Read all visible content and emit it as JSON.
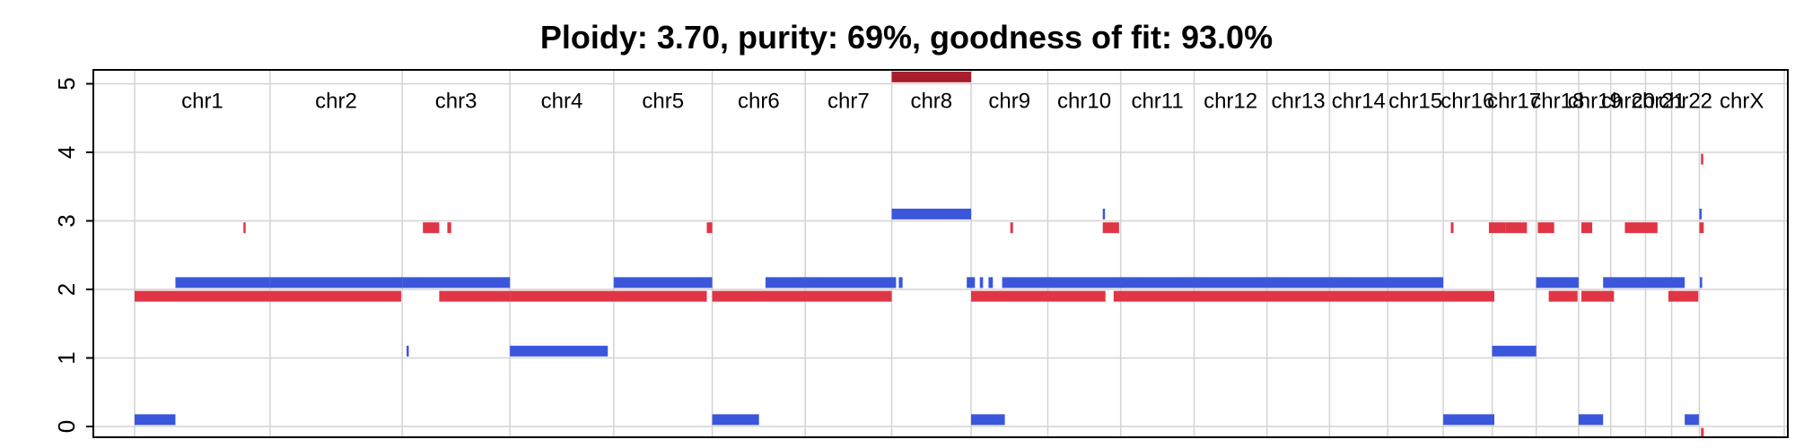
{
  "chart_data": {
    "type": "segment-plot",
    "title": "Ploidy: 3.70, purity: 69%, goodness of fit: 93.0%",
    "xlabel": "",
    "ylabel": "",
    "ylim": [
      0,
      5.1
    ],
    "yticks": [
      "0",
      "1",
      "2",
      "3",
      "4",
      "5"
    ],
    "grid": true,
    "x_unit": "Mb (concatenated genome)",
    "chromosomes": [
      {
        "name": "chr1",
        "start": 0,
        "end": 249
      },
      {
        "name": "chr2",
        "start": 249,
        "end": 492
      },
      {
        "name": "chr3",
        "start": 492,
        "end": 690
      },
      {
        "name": "chr4",
        "start": 690,
        "end": 881
      },
      {
        "name": "chr5",
        "start": 881,
        "end": 1062
      },
      {
        "name": "chr6",
        "start": 1062,
        "end": 1233
      },
      {
        "name": "chr7",
        "start": 1233,
        "end": 1392
      },
      {
        "name": "chr8",
        "start": 1392,
        "end": 1538
      },
      {
        "name": "chr9",
        "start": 1538,
        "end": 1679
      },
      {
        "name": "chr10",
        "start": 1679,
        "end": 1813
      },
      {
        "name": "chr11",
        "start": 1813,
        "end": 1948
      },
      {
        "name": "chr12",
        "start": 1948,
        "end": 2082
      },
      {
        "name": "chr13",
        "start": 2082,
        "end": 2197
      },
      {
        "name": "chr14",
        "start": 2197,
        "end": 2304
      },
      {
        "name": "chr15",
        "start": 2304,
        "end": 2406
      },
      {
        "name": "chr16",
        "start": 2406,
        "end": 2496
      },
      {
        "name": "chr17",
        "start": 2496,
        "end": 2577
      },
      {
        "name": "chr18",
        "start": 2577,
        "end": 2655
      },
      {
        "name": "chr19",
        "start": 2655,
        "end": 2714
      },
      {
        "name": "chr20",
        "start": 2714,
        "end": 2778
      },
      {
        "name": "chr21",
        "start": 2778,
        "end": 2826
      },
      {
        "name": "chr22",
        "start": 2826,
        "end": 2877
      },
      {
        "name": "chrX",
        "start": 2877,
        "end": 3033
      }
    ],
    "series": [
      {
        "color": "#e03545",
        "segments": [
          {
            "start": 0,
            "end": 249,
            "value": 1.9
          },
          {
            "start": 249,
            "end": 490,
            "value": 1.9
          },
          {
            "start": 200,
            "end": 202,
            "value": 2.9
          },
          {
            "start": 530,
            "end": 560,
            "value": 2.9
          },
          {
            "start": 575,
            "end": 582,
            "value": 2.9
          },
          {
            "start": 560,
            "end": 690,
            "value": 1.9
          },
          {
            "start": 690,
            "end": 1052,
            "value": 1.9
          },
          {
            "start": 1052,
            "end": 1062,
            "value": 2.9
          },
          {
            "start": 1062,
            "end": 1392,
            "value": 1.9
          },
          {
            "start": 1392,
            "end": 1538,
            "value": 5.1
          },
          {
            "start": 1538,
            "end": 1679,
            "value": 1.9
          },
          {
            "start": 1610,
            "end": 1615,
            "value": 2.9
          },
          {
            "start": 1679,
            "end": 1785,
            "value": 1.9
          },
          {
            "start": 1780,
            "end": 1810,
            "value": 2.9
          },
          {
            "start": 1800,
            "end": 2406,
            "value": 1.9
          },
          {
            "start": 2420,
            "end": 2425,
            "value": 2.9
          },
          {
            "start": 2406,
            "end": 2500,
            "value": 1.9
          },
          {
            "start": 2490,
            "end": 2520,
            "value": 2.9
          },
          {
            "start": 2520,
            "end": 2560,
            "value": 2.9
          },
          {
            "start": 2580,
            "end": 2610,
            "value": 2.9
          },
          {
            "start": 2600,
            "end": 2653,
            "value": 1.9
          },
          {
            "start": 2660,
            "end": 2680,
            "value": 2.9
          },
          {
            "start": 2660,
            "end": 2720,
            "value": 1.9
          },
          {
            "start": 2740,
            "end": 2800,
            "value": 2.9
          },
          {
            "start": 2820,
            "end": 2875,
            "value": 1.9
          },
          {
            "start": 2877,
            "end": 2885,
            "value": 2.9
          },
          {
            "start": 2880,
            "end": 2884,
            "value": 3.9
          },
          {
            "start": 2880,
            "end": 2885,
            "value": -0.1
          }
        ]
      },
      {
        "color": "#3a57db",
        "segments": [
          {
            "start": 0,
            "end": 75,
            "value": 0.1
          },
          {
            "start": 75,
            "end": 249,
            "value": 2.1
          },
          {
            "start": 249,
            "end": 492,
            "value": 2.1
          },
          {
            "start": 492,
            "end": 690,
            "value": 2.1
          },
          {
            "start": 500,
            "end": 504,
            "value": 1.1
          },
          {
            "start": 690,
            "end": 870,
            "value": 1.1
          },
          {
            "start": 881,
            "end": 1062,
            "value": 2.1
          },
          {
            "start": 1062,
            "end": 1148,
            "value": 0.1
          },
          {
            "start": 1160,
            "end": 1400,
            "value": 2.1
          },
          {
            "start": 1405,
            "end": 1412,
            "value": 2.1
          },
          {
            "start": 1530,
            "end": 1545,
            "value": 2.1
          },
          {
            "start": 1554,
            "end": 1560,
            "value": 2.1
          },
          {
            "start": 1570,
            "end": 1578,
            "value": 2.1
          },
          {
            "start": 1392,
            "end": 1538,
            "value": 3.1
          },
          {
            "start": 1538,
            "end": 1600,
            "value": 0.1
          },
          {
            "start": 1595,
            "end": 2406,
            "value": 2.1
          },
          {
            "start": 1780,
            "end": 1784,
            "value": 3.1
          },
          {
            "start": 2406,
            "end": 2500,
            "value": 0.1
          },
          {
            "start": 2496,
            "end": 2577,
            "value": 1.1
          },
          {
            "start": 2577,
            "end": 2655,
            "value": 2.1
          },
          {
            "start": 2655,
            "end": 2700,
            "value": 0.1
          },
          {
            "start": 2700,
            "end": 2850,
            "value": 2.1
          },
          {
            "start": 2850,
            "end": 2876,
            "value": 0.1
          },
          {
            "start": 2877,
            "end": 2880,
            "value": 3.1
          },
          {
            "start": 2878,
            "end": 2882,
            "value": 2.1
          }
        ]
      }
    ]
  }
}
